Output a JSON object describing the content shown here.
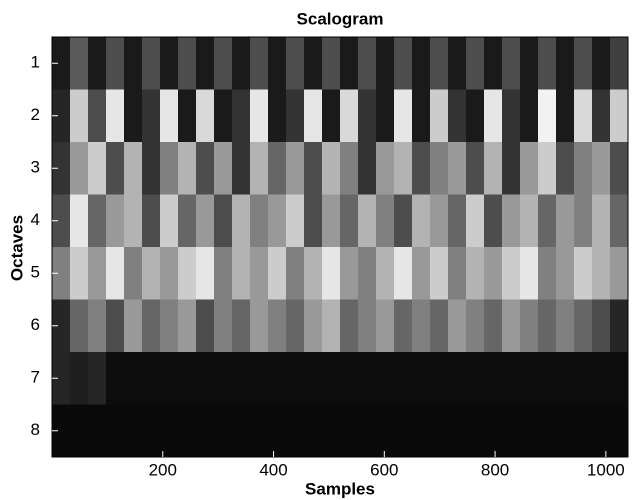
{
  "chart_data": {
    "type": "heatmap",
    "title": "Scalogram",
    "xlabel": "Samples",
    "ylabel": "Octaves",
    "colormap": "gray",
    "clim": [
      0,
      1
    ],
    "xlim": [
      0,
      1040
    ],
    "xticks": [
      200,
      400,
      600,
      800,
      1000
    ],
    "ylim": [
      0.5,
      8.5
    ],
    "yticks": [
      1,
      2,
      3,
      4,
      5,
      6,
      7,
      8
    ],
    "rows": [
      [
        0.1,
        0.35,
        0.1,
        0.3,
        0.1,
        0.3,
        0.1,
        0.3,
        0.1,
        0.3,
        0.1,
        0.3,
        0.1,
        0.3,
        0.1,
        0.3,
        0.1,
        0.3,
        0.1,
        0.3,
        0.1,
        0.3,
        0.1,
        0.3,
        0.1,
        0.3,
        0.1,
        0.3,
        0.1,
        0.3,
        0.1,
        0.25
      ],
      [
        0.15,
        0.8,
        0.3,
        0.9,
        0.1,
        0.2,
        0.9,
        0.1,
        0.85,
        0.1,
        0.2,
        0.9,
        0.1,
        0.2,
        0.9,
        0.1,
        0.85,
        0.2,
        0.1,
        0.9,
        0.1,
        0.8,
        0.2,
        0.1,
        0.9,
        0.2,
        0.1,
        0.95,
        0.1,
        0.85,
        0.2,
        0.8
      ],
      [
        0.2,
        0.6,
        0.8,
        0.3,
        0.7,
        0.2,
        0.5,
        0.7,
        0.3,
        0.6,
        0.2,
        0.7,
        0.4,
        0.6,
        0.3,
        0.7,
        0.5,
        0.2,
        0.6,
        0.7,
        0.3,
        0.5,
        0.6,
        0.3,
        0.7,
        0.2,
        0.6,
        0.8,
        0.3,
        0.5,
        0.6,
        0.3
      ],
      [
        0.3,
        0.9,
        0.4,
        0.6,
        0.7,
        0.3,
        0.8,
        0.4,
        0.6,
        0.3,
        0.7,
        0.5,
        0.6,
        0.8,
        0.3,
        0.6,
        0.4,
        0.7,
        0.5,
        0.3,
        0.7,
        0.6,
        0.4,
        0.8,
        0.3,
        0.6,
        0.7,
        0.4,
        0.6,
        0.5,
        0.7,
        0.4
      ],
      [
        0.5,
        0.8,
        0.6,
        0.9,
        0.5,
        0.7,
        0.6,
        0.8,
        0.9,
        0.5,
        0.7,
        0.6,
        0.8,
        0.5,
        0.7,
        0.9,
        0.6,
        0.5,
        0.7,
        0.9,
        0.6,
        0.8,
        0.5,
        0.7,
        0.6,
        0.8,
        0.9,
        0.5,
        0.6,
        0.8,
        0.7,
        0.6
      ],
      [
        0.15,
        0.4,
        0.5,
        0.3,
        0.6,
        0.4,
        0.5,
        0.6,
        0.3,
        0.5,
        0.4,
        0.6,
        0.5,
        0.4,
        0.6,
        0.7,
        0.4,
        0.5,
        0.6,
        0.4,
        0.5,
        0.4,
        0.6,
        0.5,
        0.4,
        0.6,
        0.5,
        0.4,
        0.5,
        0.4,
        0.3,
        0.15
      ],
      [
        0.15,
        0.12,
        0.15,
        0.05,
        0.05,
        0.05,
        0.05,
        0.05,
        0.05,
        0.05,
        0.05,
        0.05,
        0.05,
        0.05,
        0.05,
        0.05,
        0.05,
        0.05,
        0.05,
        0.05,
        0.05,
        0.05,
        0.05,
        0.05,
        0.05,
        0.05,
        0.05,
        0.05,
        0.05,
        0.05,
        0.05,
        0.05
      ],
      [
        0.04,
        0.04,
        0.04,
        0.04,
        0.04,
        0.04,
        0.04,
        0.04,
        0.04,
        0.04,
        0.04,
        0.04,
        0.04,
        0.04,
        0.04,
        0.04,
        0.04,
        0.04,
        0.04,
        0.04,
        0.04,
        0.04,
        0.04,
        0.04,
        0.04,
        0.04,
        0.04,
        0.04,
        0.04,
        0.04,
        0.04,
        0.04
      ]
    ]
  }
}
